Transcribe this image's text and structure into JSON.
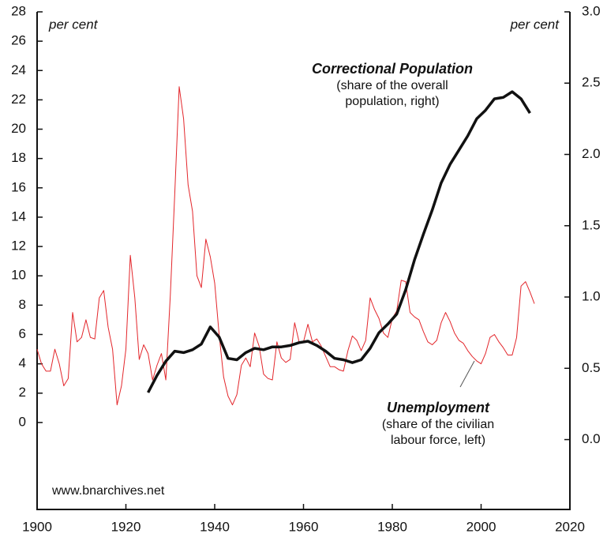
{
  "chart_data": {
    "type": "line",
    "xlim": [
      1900,
      2020
    ],
    "xticks": [
      1900,
      1920,
      1940,
      1960,
      1980,
      2000,
      2020
    ],
    "ylim": [
      -5.93,
      28
    ],
    "yticks": [
      0,
      2,
      4,
      6,
      8,
      10,
      12,
      14,
      16,
      18,
      20,
      22,
      24,
      26,
      28
    ],
    "y2lim": [
      -0.49,
      3.0
    ],
    "y2ticks": [
      {
        "value": 0,
        "label": "0.0"
      },
      0.5,
      {
        "value": 1,
        "label": "1.0"
      },
      1.5,
      {
        "value": 2,
        "label": "2.0"
      },
      2.5,
      {
        "value": 3,
        "label": "3.0"
      }
    ],
    "y_label": "per cent",
    "y2_label": "per cent",
    "source": "www.bnarchives.net",
    "series": [
      {
        "name": "Unemployment",
        "note": [
          "(share of the civilian",
          "labour force, left)"
        ],
        "color": "#e3262b",
        "axis": "y",
        "x": [
          1900,
          1901,
          1902,
          1903,
          1904,
          1905,
          1906,
          1907,
          1908,
          1909,
          1910,
          1911,
          1912,
          1913,
          1914,
          1915,
          1916,
          1917,
          1918,
          1919,
          1920,
          1921,
          1922,
          1923,
          1924,
          1925,
          1926,
          1927,
          1928,
          1929,
          1930,
          1931,
          1932,
          1933,
          1934,
          1935,
          1936,
          1937,
          1938,
          1939,
          1940,
          1941,
          1942,
          1943,
          1944,
          1945,
          1946,
          1947,
          1948,
          1949,
          1950,
          1951,
          1952,
          1953,
          1954,
          1955,
          1956,
          1957,
          1958,
          1959,
          1960,
          1961,
          1962,
          1963,
          1964,
          1965,
          1966,
          1967,
          1968,
          1969,
          1970,
          1971,
          1972,
          1973,
          1974,
          1975,
          1976,
          1977,
          1978,
          1979,
          1980,
          1981,
          1982,
          1983,
          1984,
          1985,
          1986,
          1987,
          1988,
          1989,
          1990,
          1991,
          1992,
          1993,
          1994,
          1995,
          1996,
          1997,
          1998,
          1999,
          2000,
          2001,
          2002,
          2003,
          2004,
          2005,
          2006,
          2007,
          2008,
          2009,
          2010,
          2011,
          2012
        ],
        "values": [
          5.0,
          4.0,
          3.5,
          3.5,
          5.0,
          4.0,
          2.5,
          3.0,
          7.5,
          5.5,
          5.8,
          7.0,
          5.8,
          5.7,
          8.5,
          9.0,
          6.5,
          5.0,
          1.2,
          2.5,
          5.0,
          11.4,
          8.5,
          4.3,
          5.3,
          4.7,
          2.9,
          3.9,
          4.7,
          2.9,
          8.7,
          15.6,
          22.9,
          20.7,
          16.2,
          14.4,
          10.0,
          9.2,
          12.5,
          11.3,
          9.5,
          6.0,
          3.1,
          1.8,
          1.2,
          1.9,
          3.9,
          4.4,
          3.8,
          6.1,
          5.2,
          3.3,
          3.0,
          2.9,
          5.5,
          4.4,
          4.1,
          4.3,
          6.8,
          5.5,
          5.5,
          6.7,
          5.5,
          5.7,
          5.2,
          4.5,
          3.8,
          3.8,
          3.6,
          3.5,
          4.9,
          5.9,
          5.6,
          4.9,
          5.6,
          8.5,
          7.7,
          7.1,
          6.1,
          5.8,
          7.1,
          7.6,
          9.7,
          9.6,
          7.5,
          7.2,
          7.0,
          6.2,
          5.5,
          5.3,
          5.6,
          6.8,
          7.5,
          6.9,
          6.1,
          5.6,
          5.4,
          4.9,
          4.5,
          4.2,
          4.0,
          4.7,
          5.8,
          6.0,
          5.5,
          5.1,
          4.6,
          4.6,
          5.8,
          9.3,
          9.6,
          8.9,
          8.1
        ]
      },
      {
        "name": "Correctional Population",
        "note": [
          "(share of the overall",
          "population, right)"
        ],
        "color": "#111111",
        "axis": "y2",
        "x": [
          1925,
          1927,
          1929,
          1931,
          1933,
          1935,
          1937,
          1939,
          1941,
          1943,
          1945,
          1947,
          1949,
          1951,
          1953,
          1955,
          1957,
          1959,
          1961,
          1963,
          1965,
          1967,
          1969,
          1971,
          1973,
          1975,
          1977,
          1979,
          1981,
          1983,
          1985,
          1987,
          1989,
          1991,
          1993,
          1995,
          1997,
          1999,
          2001,
          2003,
          2005,
          2007,
          2009,
          2011
        ],
        "values": [
          0.33,
          0.45,
          0.55,
          0.62,
          0.61,
          0.63,
          0.67,
          0.79,
          0.72,
          0.57,
          0.56,
          0.61,
          0.64,
          0.63,
          0.65,
          0.65,
          0.66,
          0.68,
          0.69,
          0.66,
          0.62,
          0.57,
          0.56,
          0.54,
          0.56,
          0.64,
          0.75,
          0.81,
          0.88,
          1.05,
          1.26,
          1.44,
          1.61,
          1.8,
          1.93,
          2.03,
          2.13,
          2.25,
          2.31,
          2.39,
          2.4,
          2.44,
          2.39,
          2.29
        ]
      }
    ]
  }
}
